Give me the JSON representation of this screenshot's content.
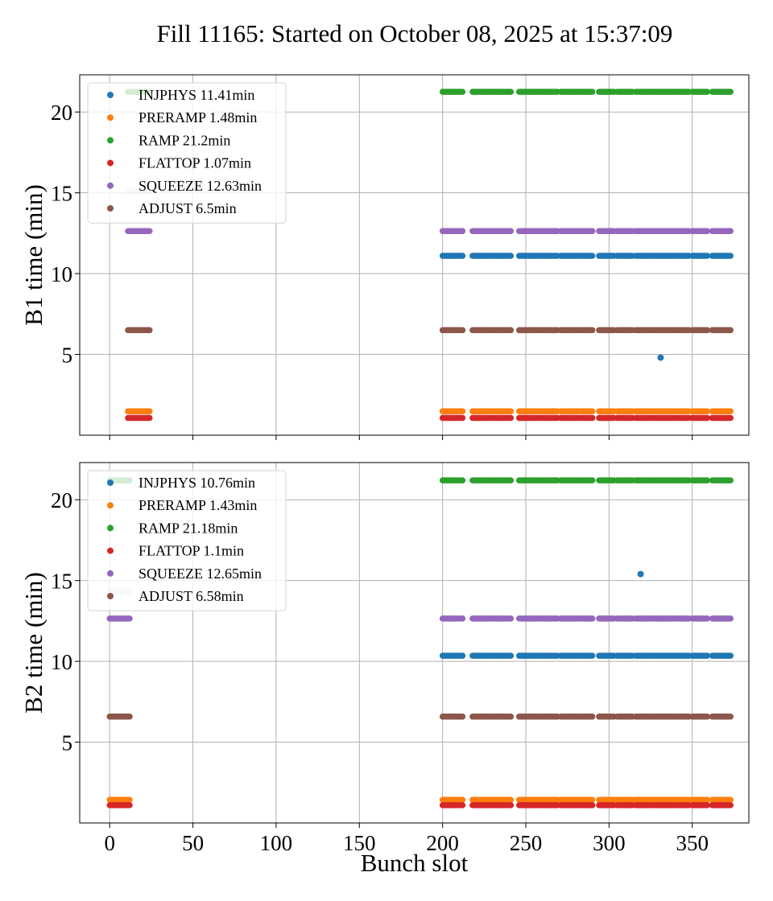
{
  "chart_data": [
    {
      "type": "scatter",
      "title": "Fill 11165: Started on October 08, 2025 at 15:37:09",
      "ylabel": "B1 time (min)",
      "xlabel": "",
      "xlim": [
        -18,
        384
      ],
      "ylim": [
        0,
        22.3
      ],
      "xticks": [
        0,
        50,
        100,
        150,
        200,
        250,
        300,
        350
      ],
      "xtick_labels": [
        "0",
        "50",
        "100",
        "150",
        "200",
        "250",
        "300",
        "350"
      ],
      "yticks": [
        5,
        10,
        15,
        20
      ],
      "ytick_labels": [
        "5",
        "10",
        "15",
        "20"
      ],
      "grid": true,
      "legend_position": "top-left",
      "series": [
        {
          "name": "INJPHYS 11.41min",
          "color": "#1f77b4",
          "value": 11.1,
          "outliers": [
            {
              "x": 331,
              "y": 4.8
            }
          ],
          "first_train_y": 15.05
        },
        {
          "name": "PRERAMP 1.48min",
          "color": "#ff7f0e",
          "value": 1.48
        },
        {
          "name": "RAMP 21.2min",
          "color": "#2ca02c",
          "value": 21.25
        },
        {
          "name": "FLATTOP 1.07min",
          "color": "#d62728",
          "value": 1.07
        },
        {
          "name": "SQUEEZE 12.63min",
          "color": "#9467bd",
          "value": 12.63
        },
        {
          "name": "ADJUST 6.5min",
          "color": "#8c564b",
          "value": 6.5
        }
      ],
      "first_train": [
        11,
        24
      ],
      "trains": [
        [
          200,
          212
        ],
        [
          218,
          229
        ],
        [
          230,
          241
        ],
        [
          246,
          257
        ],
        [
          258,
          269
        ],
        [
          271,
          282
        ],
        [
          283,
          290
        ],
        [
          294,
          303
        ],
        [
          305,
          314
        ],
        [
          316,
          327
        ],
        [
          328,
          339
        ],
        [
          340,
          348
        ],
        [
          350,
          359
        ],
        [
          362,
          373
        ]
      ]
    },
    {
      "type": "scatter",
      "title": "",
      "ylabel": "B2 time (min)",
      "xlabel": "Bunch slot",
      "xlim": [
        -18,
        384
      ],
      "ylim": [
        0,
        22.3
      ],
      "xticks": [
        0,
        50,
        100,
        150,
        200,
        250,
        300,
        350
      ],
      "xtick_labels": [
        "0",
        "50",
        "100",
        "150",
        "200",
        "250",
        "300",
        "350"
      ],
      "yticks": [
        5,
        10,
        15,
        20
      ],
      "ytick_labels": [
        "5",
        "10",
        "15",
        "20"
      ],
      "grid": true,
      "legend_position": "top-left",
      "series": [
        {
          "name": "INJPHYS 10.76min",
          "color": "#1f77b4",
          "value": 10.35,
          "outliers": [
            {
              "x": 319,
              "y": 15.4
            }
          ],
          "first_train_y": 14.3
        },
        {
          "name": "PRERAMP 1.43min",
          "color": "#ff7f0e",
          "value": 1.43
        },
        {
          "name": "RAMP 21.18min",
          "color": "#2ca02c",
          "value": 21.2
        },
        {
          "name": "FLATTOP 1.1min",
          "color": "#d62728",
          "value": 1.1
        },
        {
          "name": "SQUEEZE 12.65min",
          "color": "#9467bd",
          "value": 12.65
        },
        {
          "name": "ADJUST 6.58min",
          "color": "#8c564b",
          "value": 6.58
        }
      ],
      "first_train": [
        0,
        12
      ],
      "trains": [
        [
          200,
          212
        ],
        [
          218,
          229
        ],
        [
          230,
          241
        ],
        [
          246,
          257
        ],
        [
          258,
          269
        ],
        [
          271,
          282
        ],
        [
          283,
          290
        ],
        [
          294,
          303
        ],
        [
          305,
          314
        ],
        [
          316,
          327
        ],
        [
          328,
          339
        ],
        [
          340,
          348
        ],
        [
          350,
          359
        ],
        [
          362,
          373
        ]
      ]
    }
  ]
}
